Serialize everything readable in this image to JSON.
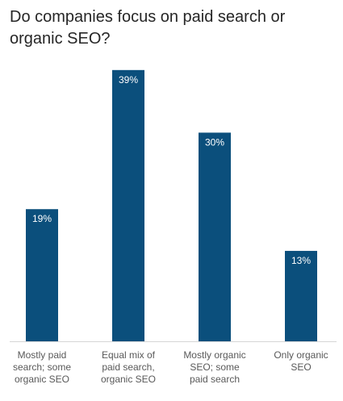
{
  "chart_data": {
    "type": "bar",
    "title": "Do companies focus on paid search or organic SEO?",
    "xlabel": "",
    "ylabel": "",
    "categories": [
      [
        "Mostly paid",
        "search; some",
        "organic SEO"
      ],
      [
        "Equal mix of",
        "paid search,",
        "organic SEO"
      ],
      [
        "Mostly organic",
        "SEO; some",
        "paid search"
      ],
      [
        "Only organic",
        "SEO"
      ]
    ],
    "values": [
      19,
      39,
      30,
      13
    ],
    "value_labels": [
      "19%",
      "39%",
      "30%",
      "13%"
    ],
    "ylim": [
      0,
      40
    ],
    "grid": false,
    "bar_color": "#0b4f7c"
  }
}
